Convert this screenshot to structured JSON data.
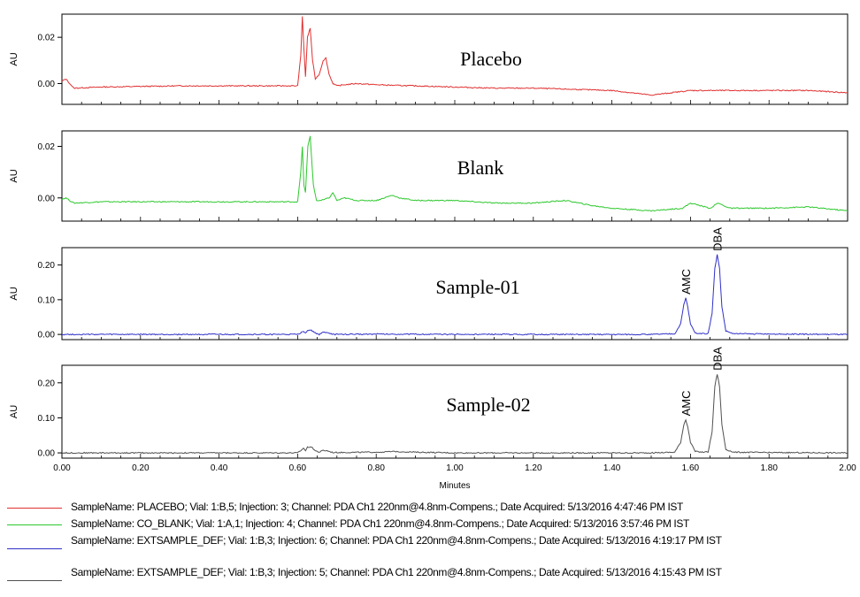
{
  "chart_data": {
    "type": "line",
    "xlabel": "Minutes",
    "xlim": [
      0.0,
      2.0
    ],
    "x_ticks": [
      "0.00",
      "0.20",
      "0.40",
      "0.60",
      "0.80",
      "1.00",
      "1.20",
      "1.40",
      "1.60",
      "1.80",
      "2.00"
    ],
    "panels": [
      {
        "title": "Placebo",
        "ylabel": "AU",
        "ylim": [
          -0.009,
          0.03
        ],
        "y_ticks": [
          "0.02",
          "0.00"
        ],
        "y_tick_values": [
          0.02,
          0.0
        ],
        "color": "#e03030",
        "x": [
          0.0,
          0.01,
          0.03,
          0.1,
          0.3,
          0.5,
          0.6,
          0.608,
          0.612,
          0.616,
          0.62,
          0.625,
          0.632,
          0.638,
          0.645,
          0.655,
          0.665,
          0.672,
          0.68,
          0.69,
          0.7,
          0.72,
          0.75,
          0.8,
          0.85,
          0.9,
          1.0,
          1.1,
          1.2,
          1.3,
          1.4,
          1.45,
          1.5,
          1.55,
          1.6,
          1.7,
          1.8,
          1.9,
          2.0
        ],
        "values": [
          0.001,
          0.002,
          -0.002,
          -0.0015,
          -0.001,
          -0.001,
          -0.001,
          0.012,
          0.029,
          0.015,
          0.003,
          0.02,
          0.024,
          0.01,
          0.002,
          0.004,
          0.01,
          0.011,
          0.004,
          0.0,
          -0.001,
          -0.0005,
          0.0,
          -0.0005,
          -0.0008,
          -0.001,
          -0.0015,
          -0.002,
          -0.002,
          -0.0025,
          -0.003,
          -0.004,
          -0.005,
          -0.004,
          -0.003,
          -0.003,
          -0.003,
          -0.003,
          -0.004
        ]
      },
      {
        "title": "Blank",
        "ylabel": "AU",
        "ylim": [
          -0.009,
          0.026
        ],
        "y_ticks": [
          "0.02",
          "0.00"
        ],
        "y_tick_values": [
          0.02,
          0.0
        ],
        "color": "#2ec82e",
        "x": [
          0.0,
          0.01,
          0.03,
          0.1,
          0.3,
          0.5,
          0.6,
          0.608,
          0.612,
          0.616,
          0.62,
          0.626,
          0.632,
          0.64,
          0.648,
          0.66,
          0.68,
          0.69,
          0.7,
          0.72,
          0.75,
          0.8,
          0.84,
          0.86,
          0.9,
          1.0,
          1.1,
          1.2,
          1.28,
          1.3,
          1.35,
          1.4,
          1.5,
          1.58,
          1.6,
          1.65,
          1.67,
          1.7,
          1.8,
          1.9,
          2.0
        ],
        "values": [
          -0.0005,
          0.0,
          -0.002,
          -0.0015,
          -0.0015,
          -0.0015,
          -0.0015,
          0.01,
          0.02,
          0.005,
          0.002,
          0.02,
          0.024,
          0.005,
          -0.001,
          -0.001,
          0.0,
          0.002,
          -0.001,
          0.0,
          -0.001,
          -0.001,
          0.001,
          0.0,
          -0.001,
          -0.001,
          -0.002,
          -0.002,
          -0.001,
          -0.0015,
          -0.003,
          -0.004,
          -0.005,
          -0.004,
          -0.002,
          -0.004,
          -0.002,
          -0.004,
          -0.004,
          -0.0035,
          -0.005
        ]
      },
      {
        "title": "Sample-01",
        "ylabel": "AU",
        "ylim": [
          -0.015,
          0.25
        ],
        "y_ticks": [
          "0.20",
          "0.10",
          "0.00"
        ],
        "y_tick_values": [
          0.2,
          0.1,
          0.0
        ],
        "color": "#3030c8",
        "annotations": [
          {
            "text": "AMC",
            "x": 1.588
          },
          {
            "text": "DBA",
            "x": 1.668
          }
        ],
        "x": [
          0.0,
          0.3,
          0.6,
          0.61,
          0.615,
          0.62,
          0.625,
          0.635,
          0.645,
          0.655,
          0.665,
          0.675,
          0.69,
          0.8,
          1.0,
          1.2,
          1.4,
          1.5,
          1.56,
          1.575,
          1.583,
          1.588,
          1.593,
          1.6,
          1.612,
          1.63,
          1.645,
          1.655,
          1.662,
          1.668,
          1.674,
          1.68,
          1.69,
          1.71,
          1.8,
          2.0
        ],
        "values": [
          0.0,
          0.0,
          0.0,
          0.006,
          0.01,
          0.004,
          0.012,
          0.012,
          0.004,
          0.0,
          0.006,
          0.006,
          0.0,
          0.001,
          0.0,
          0.0,
          0.0,
          0.0,
          0.002,
          0.03,
          0.085,
          0.105,
          0.08,
          0.03,
          0.004,
          0.002,
          0.003,
          0.06,
          0.19,
          0.23,
          0.19,
          0.08,
          0.01,
          0.002,
          0.001,
          0.0
        ]
      },
      {
        "title": "Sample-02",
        "ylabel": "AU",
        "ylim": [
          -0.015,
          0.25
        ],
        "y_ticks": [
          "0.20",
          "0.10",
          "0.00"
        ],
        "y_tick_values": [
          0.2,
          0.1,
          0.0
        ],
        "color": "#505050",
        "annotations": [
          {
            "text": "AMC",
            "x": 1.588
          },
          {
            "text": "DBA",
            "x": 1.668
          }
        ],
        "x": [
          0.0,
          0.3,
          0.6,
          0.61,
          0.615,
          0.62,
          0.625,
          0.635,
          0.645,
          0.655,
          0.665,
          0.675,
          0.69,
          0.8,
          0.85,
          0.9,
          1.0,
          1.2,
          1.4,
          1.5,
          1.56,
          1.575,
          1.583,
          1.588,
          1.593,
          1.6,
          1.612,
          1.63,
          1.645,
          1.655,
          1.662,
          1.668,
          1.674,
          1.68,
          1.69,
          1.71,
          1.8,
          2.0
        ],
        "values": [
          0.0,
          0.0,
          0.0,
          0.008,
          0.014,
          0.006,
          0.016,
          0.018,
          0.006,
          0.002,
          0.007,
          0.006,
          0.001,
          0.002,
          0.004,
          0.002,
          0.0,
          0.0,
          0.0,
          0.0,
          0.002,
          0.03,
          0.08,
          0.095,
          0.075,
          0.03,
          0.004,
          0.002,
          0.003,
          0.06,
          0.19,
          0.225,
          0.19,
          0.08,
          0.01,
          0.002,
          0.001,
          0.0
        ]
      }
    ]
  },
  "legend": [
    {
      "color": "#e03030",
      "text": "SampleName: PLACEBO;    Vial: 1:B,5;    Injection: 3;    Channel: PDA Ch1 220nm@4.8nm-Compens.;    Date Acquired: 5/13/2016 4:47:46 PM IST"
    },
    {
      "color": "#2ec82e",
      "text": "SampleName: CO_BLANK;    Vial: 1:A,1;    Injection: 4;    Channel: PDA Ch1 220nm@4.8nm-Compens.;    Date Acquired: 5/13/2016 3:57:46 PM IST"
    },
    {
      "color": "#3030c8",
      "text": "SampleName: EXTSAMPLE_DEF;    Vial: 1:B,3;    Injection: 6;    Channel: PDA Ch1 220nm@4.8nm-Compens.;    Date Acquired: 5/13/2016 4:19:17 PM IST"
    },
    {
      "color": "#505050",
      "text": "SampleName: EXTSAMPLE_DEF;    Vial: 1:B,3;    Injection: 5;    Channel: PDA Ch1 220nm@4.8nm-Compens.;    Date Acquired: 5/13/2016 4:15:43 PM IST"
    }
  ]
}
